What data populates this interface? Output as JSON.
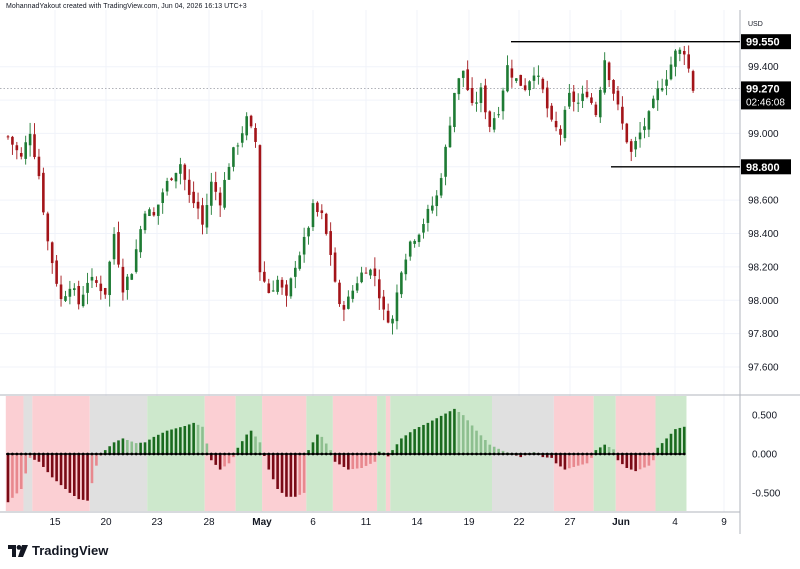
{
  "attribution": "MohannadYakout created with TradingView.com, Jun 04, 2026 16:13 UTC+3",
  "brand": {
    "name": "TradingView"
  },
  "chart_data": {
    "type": "candlestick",
    "price_axis": {
      "currency_label": "USD",
      "ticks": [
        "99.400",
        "99.200",
        "99.000",
        "98.800",
        "98.600",
        "98.400",
        "98.200",
        "98.000",
        "97.800",
        "97.600"
      ],
      "ylim": [
        97.45,
        99.68
      ]
    },
    "current_price": {
      "price": "99.270",
      "countdown": "02:46:08"
    },
    "horizontal_levels": [
      {
        "price": "99.550",
        "from_date": "May 20",
        "color": "#000000"
      },
      {
        "price": "98.800",
        "from_date": "May 30",
        "color": "#000000"
      }
    ],
    "x_axis": {
      "labels": [
        "15",
        "20",
        "23",
        "28",
        "May",
        "6",
        "11",
        "14",
        "19",
        "22",
        "27",
        "Jun",
        "4",
        "9"
      ],
      "bold_labels": [
        "May",
        "Jun"
      ]
    },
    "bar_colors": {
      "up": "#1e7b34",
      "down": "#a31419"
    },
    "oscillator": {
      "ticks": [
        "0.500",
        "0.000",
        "-0.500"
      ],
      "ylim": [
        -0.72,
        0.72
      ],
      "zero_line_color": "#000000",
      "histogram_colors": {
        "strong_up": "#1a6b1f",
        "weak_up": "#8dbf8f",
        "strong_down": "#7a0a16",
        "weak_down": "#e8888e"
      },
      "zone_colors": {
        "green": "#cde8cc",
        "red": "#fbcfd3",
        "gray": "#e0e0e0"
      },
      "zones": [
        {
          "color": "red",
          "from_bar": 0,
          "to_bar": 3
        },
        {
          "color": "gray",
          "from_bar": 4,
          "to_bar": 5
        },
        {
          "color": "red",
          "from_bar": 6,
          "to_bar": 18
        },
        {
          "color": "gray",
          "from_bar": 19,
          "to_bar": 31
        },
        {
          "color": "green",
          "from_bar": 32,
          "to_bar": 44
        },
        {
          "color": "red",
          "from_bar": 45,
          "to_bar": 51
        },
        {
          "color": "green",
          "from_bar": 52,
          "to_bar": 57
        },
        {
          "color": "red",
          "from_bar": 58,
          "to_bar": 67
        },
        {
          "color": "green",
          "from_bar": 68,
          "to_bar": 73
        },
        {
          "color": "red",
          "from_bar": 74,
          "to_bar": 83
        },
        {
          "color": "green",
          "from_bar": 84,
          "to_bar": 85
        },
        {
          "color": "red",
          "from_bar": 86,
          "to_bar": 86
        },
        {
          "color": "green",
          "from_bar": 87,
          "to_bar": 109
        },
        {
          "color": "gray",
          "from_bar": 110,
          "to_bar": 123
        },
        {
          "color": "red",
          "from_bar": 124,
          "to_bar": 132
        },
        {
          "color": "green",
          "from_bar": 133,
          "to_bar": 137
        },
        {
          "color": "red",
          "from_bar": 138,
          "to_bar": 146
        },
        {
          "color": "green",
          "from_bar": 147,
          "to_bar": 153
        }
      ],
      "keyframes": [
        [
          0,
          -0.62
        ],
        [
          3,
          -0.45
        ],
        [
          5,
          -0.05
        ],
        [
          7,
          -0.1
        ],
        [
          10,
          -0.3
        ],
        [
          14,
          -0.5
        ],
        [
          16,
          -0.58
        ],
        [
          18,
          -0.6
        ],
        [
          20,
          -0.15
        ],
        [
          21,
          -0.02
        ],
        [
          22,
          0.05
        ],
        [
          24,
          0.15
        ],
        [
          26,
          0.2
        ],
        [
          29,
          0.14
        ],
        [
          31,
          0.15
        ],
        [
          33,
          0.22
        ],
        [
          36,
          0.3
        ],
        [
          40,
          0.36
        ],
        [
          42,
          0.4
        ],
        [
          44,
          0.35
        ],
        [
          46,
          -0.08
        ],
        [
          48,
          -0.2
        ],
        [
          50,
          -0.12
        ],
        [
          51,
          -0.04
        ],
        [
          52,
          0.08
        ],
        [
          54,
          0.25
        ],
        [
          55,
          0.3
        ],
        [
          57,
          0.15
        ],
        [
          59,
          -0.2
        ],
        [
          61,
          -0.45
        ],
        [
          63,
          -0.55
        ],
        [
          65,
          -0.55
        ],
        [
          67,
          -0.5
        ],
        [
          68,
          0.05
        ],
        [
          70,
          0.25
        ],
        [
          71,
          0.22
        ],
        [
          73,
          0.05
        ],
        [
          74,
          -0.1
        ],
        [
          77,
          -0.2
        ],
        [
          80,
          -0.18
        ],
        [
          83,
          -0.1
        ],
        [
          84,
          0.03
        ],
        [
          85,
          0.02
        ],
        [
          86,
          -0.03
        ],
        [
          87,
          0.05
        ],
        [
          89,
          0.2
        ],
        [
          92,
          0.32
        ],
        [
          95,
          0.4
        ],
        [
          99,
          0.52
        ],
        [
          101,
          0.58
        ],
        [
          103,
          0.5
        ],
        [
          106,
          0.3
        ],
        [
          109,
          0.12
        ],
        [
          112,
          0.04
        ],
        [
          116,
          -0.04
        ],
        [
          119,
          0.02
        ],
        [
          121,
          -0.04
        ],
        [
          123,
          -0.05
        ],
        [
          124,
          -0.12
        ],
        [
          126,
          -0.2
        ],
        [
          129,
          -0.15
        ],
        [
          131,
          -0.12
        ],
        [
          132,
          -0.05
        ],
        [
          133,
          0.05
        ],
        [
          135,
          0.12
        ],
        [
          137,
          0.06
        ],
        [
          138,
          -0.08
        ],
        [
          140,
          -0.18
        ],
        [
          142,
          -0.22
        ],
        [
          145,
          -0.15
        ],
        [
          146,
          -0.08
        ],
        [
          147,
          0.08
        ],
        [
          149,
          0.2
        ],
        [
          151,
          0.32
        ],
        [
          153,
          0.35
        ]
      ]
    },
    "price_keyframes": [
      [
        0,
        98.98
      ],
      [
        3,
        98.85
      ],
      [
        5,
        99.02
      ],
      [
        7,
        98.75
      ],
      [
        9,
        98.35
      ],
      [
        12,
        98.0
      ],
      [
        14,
        98.1
      ],
      [
        16,
        97.98
      ],
      [
        18,
        98.12
      ],
      [
        20,
        98.1
      ],
      [
        22,
        98.05
      ],
      [
        24,
        98.4
      ],
      [
        26,
        98.08
      ],
      [
        28,
        98.18
      ],
      [
        31,
        98.55
      ],
      [
        33,
        98.5
      ],
      [
        35,
        98.65
      ],
      [
        37,
        98.75
      ],
      [
        39,
        98.82
      ],
      [
        41,
        98.62
      ],
      [
        43,
        98.55
      ],
      [
        44,
        98.45
      ],
      [
        46,
        98.7
      ],
      [
        48,
        98.6
      ],
      [
        50,
        98.82
      ],
      [
        52,
        98.95
      ],
      [
        54,
        99.08
      ],
      [
        56,
        98.95
      ],
      [
        57,
        98.18
      ],
      [
        59,
        98.05
      ],
      [
        61,
        98.12
      ],
      [
        63,
        98.0
      ],
      [
        65,
        98.22
      ],
      [
        67,
        98.35
      ],
      [
        69,
        98.55
      ],
      [
        71,
        98.5
      ],
      [
        73,
        98.28
      ],
      [
        75,
        97.95
      ],
      [
        77,
        98.0
      ],
      [
        79,
        98.12
      ],
      [
        81,
        98.2
      ],
      [
        83,
        98.15
      ],
      [
        85,
        97.92
      ],
      [
        87,
        97.88
      ],
      [
        89,
        98.2
      ],
      [
        91,
        98.35
      ],
      [
        93,
        98.42
      ],
      [
        95,
        98.52
      ],
      [
        97,
        98.62
      ],
      [
        99,
        98.9
      ],
      [
        101,
        99.25
      ],
      [
        103,
        99.38
      ],
      [
        105,
        99.15
      ],
      [
        107,
        99.25
      ],
      [
        109,
        99.05
      ],
      [
        111,
        99.15
      ],
      [
        113,
        99.4
      ],
      [
        115,
        99.32
      ],
      [
        117,
        99.28
      ],
      [
        119,
        99.38
      ],
      [
        121,
        99.25
      ],
      [
        123,
        99.05
      ],
      [
        125,
        99.0
      ],
      [
        127,
        99.22
      ],
      [
        129,
        99.18
      ],
      [
        131,
        99.25
      ],
      [
        133,
        99.12
      ],
      [
        135,
        99.45
      ],
      [
        137,
        99.25
      ],
      [
        139,
        99.05
      ],
      [
        141,
        98.88
      ],
      [
        143,
        99.0
      ],
      [
        145,
        99.1
      ],
      [
        147,
        99.25
      ],
      [
        149,
        99.35
      ],
      [
        151,
        99.48
      ],
      [
        153,
        99.5
      ],
      [
        155,
        99.27
      ]
    ]
  }
}
